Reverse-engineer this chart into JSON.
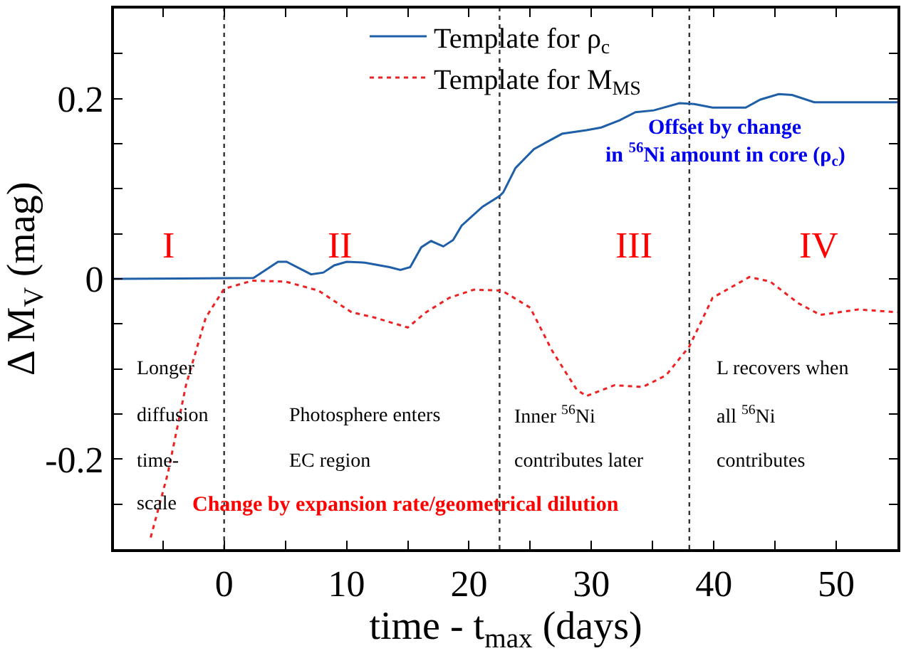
{
  "chart_data": {
    "type": "line",
    "xlabel": "time - t$_{max}$ (days)",
    "ylabel": "Δ M$_{V}$ (mag)",
    "xlim": [
      -9,
      55
    ],
    "ylim": [
      -0.3,
      0.3
    ],
    "xticks": [
      {
        "value": -5,
        "label": null
      },
      0,
      {
        "value": 5,
        "label": null
      },
      10,
      {
        "value": 15,
        "label": null
      },
      20,
      {
        "value": 25,
        "label": null
      },
      30,
      {
        "value": 35,
        "label": null
      },
      40,
      {
        "value": 45,
        "label": null
      },
      50
    ],
    "yticks": [
      {
        "value": -0.25,
        "label": null
      },
      -0.2,
      {
        "value": -0.15,
        "label": null
      },
      {
        "value": -0.1,
        "label": null
      },
      {
        "value": -0.05,
        "label": null
      },
      0,
      {
        "value": 0.05,
        "label": null
      },
      {
        "value": 0.1,
        "label": null
      },
      {
        "value": 0.15,
        "label": null
      },
      0.2,
      {
        "value": 0.25,
        "label": null
      }
    ],
    "grid": false,
    "legend": "top",
    "marker": "none",
    "series": [
      {
        "name": "Template for ρ$_{c}$",
        "color": "#1f5fa8",
        "line_style": "solid",
        "x": [
          -9,
          2.4,
          4.4,
          5.1,
          7.1,
          8.1,
          9.0,
          10,
          11.5,
          13.5,
          14.4,
          15.2,
          16.1,
          16.9,
          17.9,
          18.7,
          19.4,
          21.1,
          22.5,
          22.8,
          23.8,
          25.3,
          27.6,
          29.6,
          30.8,
          32.3,
          33.6,
          35.1,
          37.2,
          38.4,
          39.9,
          42.6,
          43.8,
          45.3,
          46.4,
          48.2,
          50.7,
          55
        ],
        "values": [
          0,
          0.001,
          0.019,
          0.019,
          0.005,
          0.007,
          0.015,
          0.019,
          0.018,
          0.013,
          0.01,
          0.013,
          0.035,
          0.042,
          0.036,
          0.043,
          0.059,
          0.08,
          0.092,
          0.096,
          0.123,
          0.144,
          0.161,
          0.165,
          0.168,
          0.176,
          0.185,
          0.187,
          0.195,
          0.194,
          0.19,
          0.19,
          0.199,
          0.205,
          0.204,
          0.196,
          0.196,
          0.196
        ]
      },
      {
        "name": "Template for M$_{MS}$",
        "color": "#ee2222",
        "line_style": "dotted",
        "x": [
          -6.0,
          -4.6,
          -3.1,
          -1.5,
          0,
          2.3,
          5.0,
          7.7,
          10.4,
          12.3,
          15,
          16.5,
          18.4,
          20.4,
          22.7,
          25,
          26.8,
          28.8,
          29.6,
          31.9,
          34.2,
          36.1,
          38,
          39.9,
          42.9,
          44.6,
          46.9,
          48.7,
          51.8,
          55
        ],
        "values": [
          -0.287,
          -0.216,
          -0.117,
          -0.043,
          -0.011,
          -0.002,
          -0.003,
          -0.013,
          -0.037,
          -0.043,
          -0.054,
          -0.037,
          -0.021,
          -0.012,
          -0.013,
          -0.032,
          -0.08,
          -0.123,
          -0.13,
          -0.118,
          -0.12,
          -0.107,
          -0.075,
          -0.021,
          0.002,
          -0.003,
          -0.027,
          -0.04,
          -0.034,
          -0.037
        ]
      }
    ],
    "ref_lines": [
      {
        "axis": "x",
        "value": 0,
        "label": null,
        "color": "#333333",
        "line_style": "dotted"
      },
      {
        "axis": "x",
        "value": 22.5,
        "label": null,
        "color": "#333333",
        "line_style": "dotted"
      },
      {
        "axis": "x",
        "value": 38,
        "label": null,
        "color": "#333333",
        "line_style": "dotted"
      }
    ],
    "annotations": [
      "I",
      "II",
      "III",
      "IV",
      "Offset by change",
      "in $^{56}$Ni amount in core (ρ$_{c}$)",
      "Longer",
      "diffusion",
      "time-",
      "scale",
      "Photosphere enters",
      "EC region",
      "Inner $^{56}$Ni",
      "contributes later",
      "L recovers when",
      "all $^{56}$Ni",
      "contributes",
      "Change by expansion rate/geometrical dilution"
    ]
  }
}
